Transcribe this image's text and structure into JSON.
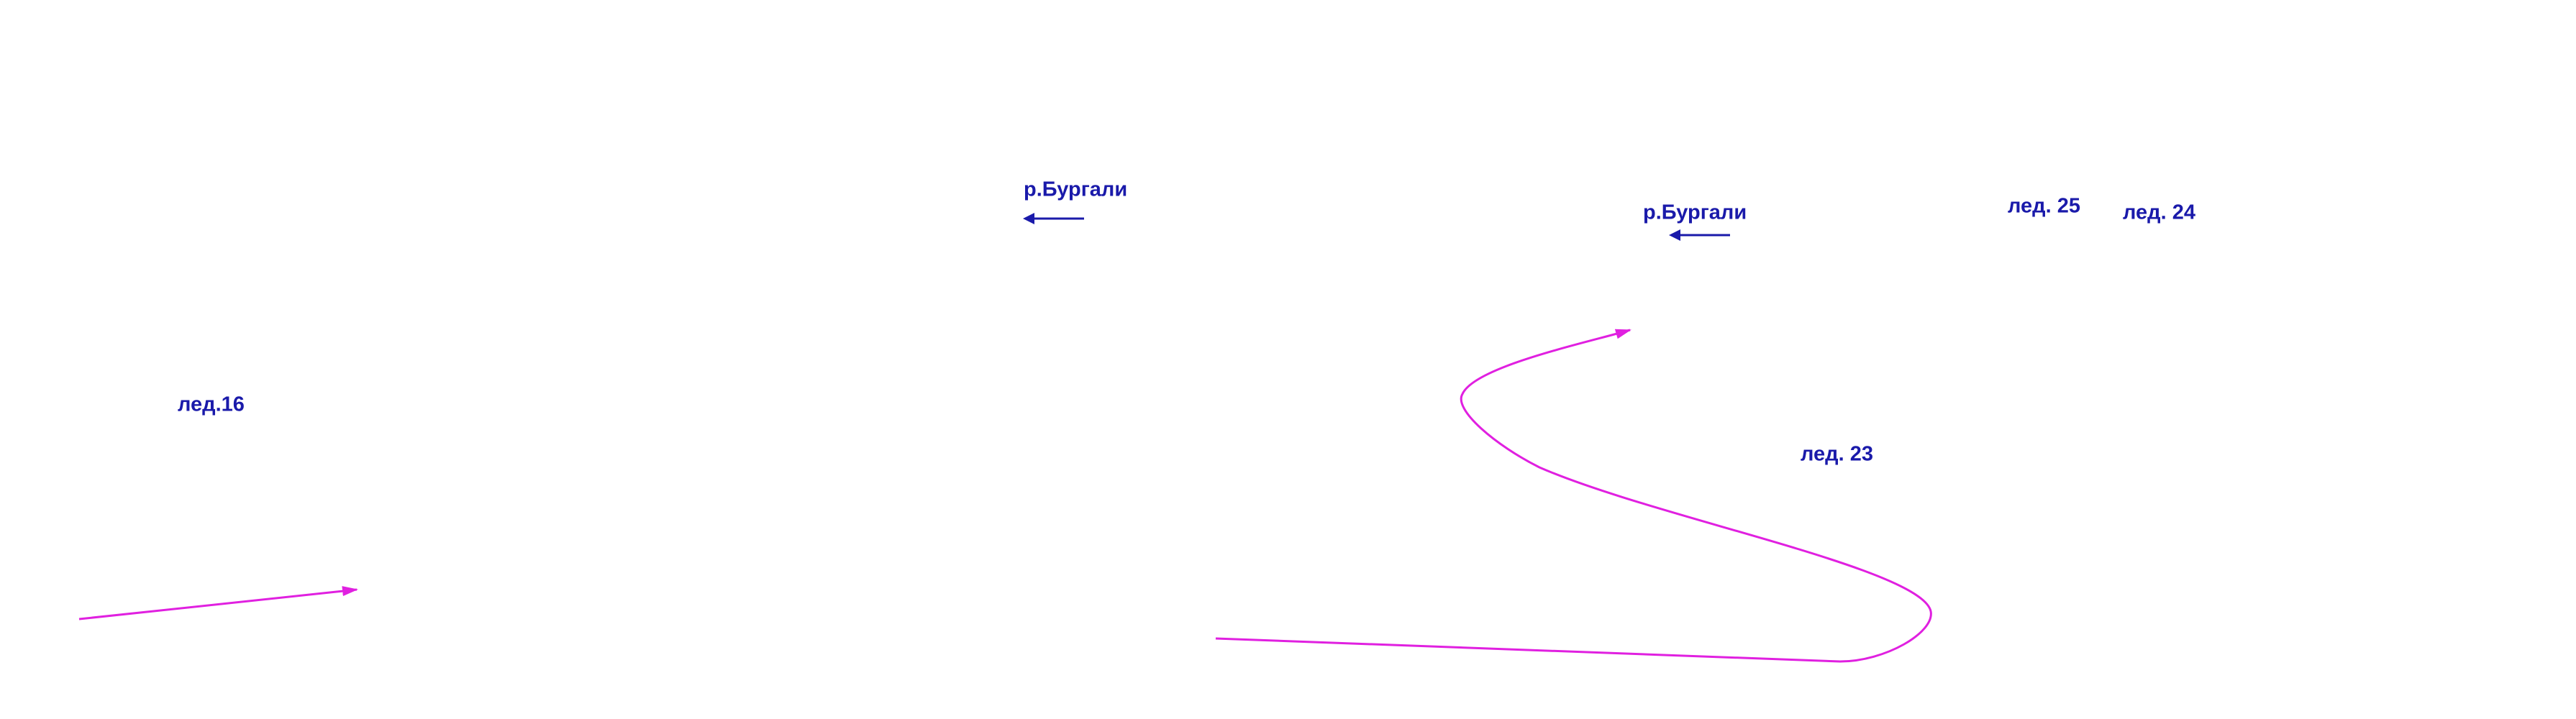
{
  "labels": [
    "р.Бургали",
    "р.Бургали",
    "лед.16",
    "лед. 23",
    "лед. 25",
    "лед. 24"
  ]
}
